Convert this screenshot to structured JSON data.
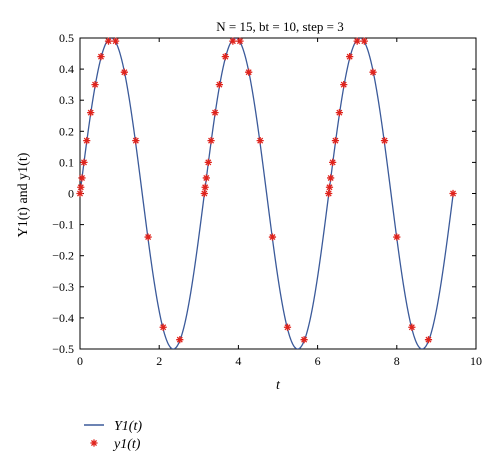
{
  "chart_data": {
    "type": "line",
    "title": "N = 15, bt = 10, step = 3",
    "xlabel": "t",
    "ylabel": "Y1(t) and y1(t)",
    "xlim": [
      0,
      10
    ],
    "ylim": [
      -0.5,
      0.5
    ],
    "x_ticks": [
      "0",
      "2",
      "4",
      "6",
      "8",
      "10"
    ],
    "y_ticks": [
      "0.5",
      "0.4",
      "0.3",
      "0.2",
      "0.1",
      "0",
      "−0.1",
      "−0.2",
      "−0.3",
      "−0.4",
      "−0.5"
    ],
    "grid": false,
    "legend_position": "below-left",
    "series": [
      {
        "name": "Y1(t)",
        "style": "line",
        "color": "#3b5a9a",
        "function": "0.5*sin(2*t)",
        "x_range": [
          0,
          9.42
        ]
      },
      {
        "name": "y1(t)",
        "style": "star-markers",
        "color": "#e0231c",
        "points": [
          [
            0.0,
            0.0
          ],
          [
            0.02,
            0.02
          ],
          [
            0.05,
            0.05
          ],
          [
            0.1,
            0.1
          ],
          [
            0.17,
            0.17
          ],
          [
            0.27,
            0.26
          ],
          [
            0.38,
            0.35
          ],
          [
            0.53,
            0.44
          ],
          [
            0.72,
            0.49
          ],
          [
            0.9,
            0.49
          ],
          [
            1.12,
            0.39
          ],
          [
            1.41,
            0.17
          ],
          [
            1.72,
            -0.14
          ],
          [
            2.1,
            -0.43
          ],
          [
            2.52,
            -0.47
          ],
          [
            3.14,
            0.0
          ],
          [
            3.16,
            0.02
          ],
          [
            3.19,
            0.05
          ],
          [
            3.24,
            0.1
          ],
          [
            3.31,
            0.17
          ],
          [
            3.41,
            0.26
          ],
          [
            3.52,
            0.35
          ],
          [
            3.67,
            0.44
          ],
          [
            3.86,
            0.49
          ],
          [
            4.04,
            0.49
          ],
          [
            4.26,
            0.39
          ],
          [
            4.55,
            0.17
          ],
          [
            4.86,
            -0.14
          ],
          [
            5.24,
            -0.43
          ],
          [
            5.66,
            -0.47
          ],
          [
            6.28,
            0.0
          ],
          [
            6.3,
            0.02
          ],
          [
            6.33,
            0.05
          ],
          [
            6.38,
            0.1
          ],
          [
            6.45,
            0.17
          ],
          [
            6.55,
            0.26
          ],
          [
            6.66,
            0.35
          ],
          [
            6.81,
            0.44
          ],
          [
            7.0,
            0.49
          ],
          [
            7.18,
            0.49
          ],
          [
            7.4,
            0.39
          ],
          [
            7.69,
            0.17
          ],
          [
            8.0,
            -0.14
          ],
          [
            8.38,
            -0.43
          ],
          [
            8.8,
            -0.47
          ],
          [
            9.42,
            0.0
          ]
        ]
      }
    ]
  }
}
